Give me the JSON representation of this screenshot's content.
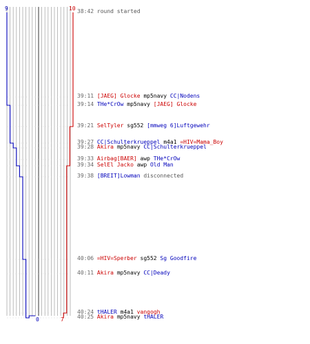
{
  "chart_data": {
    "type": "line",
    "title": "",
    "xlabel": "",
    "ylabel": "",
    "axis": {
      "top_left_label": "9",
      "top_right_label": "10",
      "bottom_blue_label": "0",
      "bottom_red_label": "7"
    },
    "series": [
      {
        "name": "",
        "color": "#0000bb",
        "values": [
          9,
          9,
          8,
          8,
          7,
          6,
          6,
          5,
          4,
          3,
          3,
          3,
          2,
          1,
          1,
          0
        ]
      },
      {
        "name": "",
        "color": "#cc0000",
        "values": [
          10,
          10,
          10,
          9,
          9,
          9,
          9,
          8,
          8,
          8,
          8,
          7,
          7,
          7,
          7,
          7
        ]
      }
    ],
    "colors": {
      "blue_team": "#0000bb",
      "red_team": "#cc0000",
      "grid": "#aaaaaa",
      "center": "#555555"
    }
  },
  "log": [
    {
      "time": "38:42",
      "segments": [
        {
          "text": "round started",
          "color": "grey"
        }
      ]
    },
    {
      "time": "39:11",
      "segments": [
        {
          "text": "[JAEG] Glocke",
          "color": "red"
        },
        {
          "text": " mp5navy ",
          "color": "black"
        },
        {
          "text": "CC|Nodens",
          "color": "blue"
        }
      ]
    },
    {
      "time": "39:14",
      "segments": [
        {
          "text": "THe*CrOw",
          "color": "blue"
        },
        {
          "text": " mp5navy ",
          "color": "black"
        },
        {
          "text": "[JAEG] Glocke",
          "color": "red"
        }
      ]
    },
    {
      "time": "39:21",
      "segments": [
        {
          "text": "SelTyler",
          "color": "red"
        },
        {
          "text": " sg552 ",
          "color": "black"
        },
        {
          "text": "[mmweg 6]Luftgewehr",
          "color": "blue"
        }
      ]
    },
    {
      "time": "39:27",
      "segments": [
        {
          "text": "CC|Schulterkrueppel",
          "color": "blue"
        },
        {
          "text": " m4a1 ",
          "color": "black"
        },
        {
          "text": "=HIV=Mama_Boy",
          "color": "red"
        }
      ]
    },
    {
      "time": "39:28",
      "segments": [
        {
          "text": "Akira",
          "color": "red"
        },
        {
          "text": " mp5navy ",
          "color": "black"
        },
        {
          "text": "CC|Schulterkrueppel",
          "color": "blue"
        }
      ]
    },
    {
      "time": "39:33",
      "segments": [
        {
          "text": "Airbag[BAER]",
          "color": "red"
        },
        {
          "text": " awp ",
          "color": "black"
        },
        {
          "text": "THe*CrOw",
          "color": "blue"
        }
      ]
    },
    {
      "time": "39:34",
      "segments": [
        {
          "text": "SelEl Jacko",
          "color": "red"
        },
        {
          "text": " awp ",
          "color": "black"
        },
        {
          "text": "Old Man",
          "color": "blue"
        }
      ]
    },
    {
      "time": "39:38",
      "segments": [
        {
          "text": "[BREIT]Lowman",
          "color": "blue"
        },
        {
          "text": " disconnected",
          "color": "grey"
        }
      ]
    },
    {
      "time": "40:06",
      "segments": [
        {
          "text": "=HIV=Sperber",
          "color": "red"
        },
        {
          "text": " sg552 ",
          "color": "black"
        },
        {
          "text": "Sg Goodfire",
          "color": "blue"
        }
      ]
    },
    {
      "time": "40:11",
      "segments": [
        {
          "text": "Akira",
          "color": "red"
        },
        {
          "text": " mp5navy ",
          "color": "black"
        },
        {
          "text": "CC|Deady",
          "color": "blue"
        }
      ]
    },
    {
      "time": "40:24",
      "segments": [
        {
          "text": "tHALER",
          "color": "blue"
        },
        {
          "text": " m4a1 ",
          "color": "black"
        },
        {
          "text": "vangogh",
          "color": "red"
        }
      ]
    },
    {
      "time": "40:25",
      "segments": [
        {
          "text": "Akira",
          "color": "red"
        },
        {
          "text": " mp5navy ",
          "color": "black"
        },
        {
          "text": "tHALER",
          "color": "blue"
        }
      ]
    }
  ]
}
